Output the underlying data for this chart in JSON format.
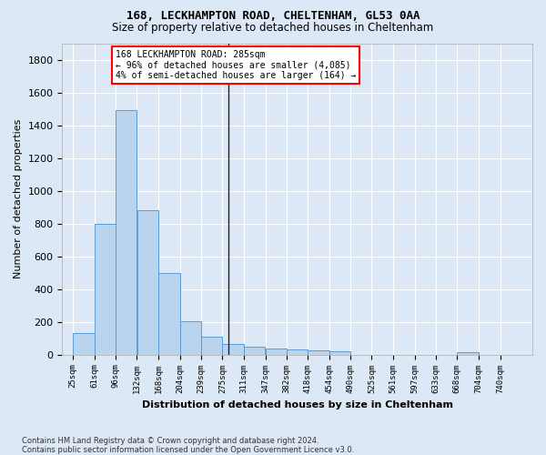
{
  "title1": "168, LECKHAMPTON ROAD, CHELTENHAM, GL53 0AA",
  "title2": "Size of property relative to detached houses in Cheltenham",
  "xlabel": "Distribution of detached houses by size in Cheltenham",
  "ylabel": "Number of detached properties",
  "footer1": "Contains HM Land Registry data © Crown copyright and database right 2024.",
  "footer2": "Contains public sector information licensed under the Open Government Licence v3.0.",
  "annotation_line1": "168 LECKHAMPTON ROAD: 285sqm",
  "annotation_line2": "← 96% of detached houses are smaller (4,085)",
  "annotation_line3": "4% of semi-detached houses are larger (164) →",
  "bar_edges": [
    25,
    61,
    96,
    132,
    168,
    204,
    239,
    275,
    311,
    347,
    382,
    418,
    454,
    490,
    525,
    561,
    597,
    633,
    668,
    704,
    740
  ],
  "bar_heights": [
    130,
    800,
    1490,
    880,
    500,
    205,
    108,
    63,
    47,
    35,
    30,
    25,
    20,
    0,
    0,
    0,
    0,
    0,
    13,
    0,
    0
  ],
  "bar_color": "#bad4ed",
  "bar_edge_color": "#5b9bd5",
  "vline_x": 285,
  "ylim": [
    0,
    1900
  ],
  "yticks": [
    0,
    200,
    400,
    600,
    800,
    1000,
    1200,
    1400,
    1600,
    1800
  ],
  "bg_color": "#dce8f5",
  "plot_bg_color": "#dce8f5",
  "grid_color": "#ffffff"
}
